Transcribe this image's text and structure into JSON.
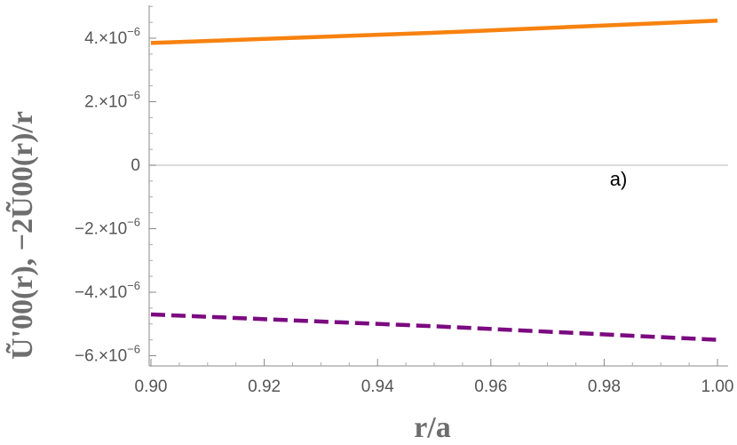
{
  "chart_data": {
    "type": "line",
    "title": "",
    "xlabel": "r/a",
    "ylabel": "Ũ'00(r), −2Ũ00(r)/r",
    "xlim": [
      0.9,
      1.0
    ],
    "ylim": [
      -6.2e-06,
      5e-06
    ],
    "x_ticks": [
      {
        "value": 0.9,
        "label": "0.90"
      },
      {
        "value": 0.92,
        "label": "0.92"
      },
      {
        "value": 0.94,
        "label": "0.94"
      },
      {
        "value": 0.96,
        "label": "0.96"
      },
      {
        "value": 0.98,
        "label": "0.98"
      },
      {
        "value": 1.0,
        "label": "1.00"
      }
    ],
    "y_ticks": [
      {
        "value": 4e-06,
        "mantissa": "4.×10",
        "exponent": "−6"
      },
      {
        "value": 2e-06,
        "mantissa": "2.×10",
        "exponent": "−6"
      },
      {
        "value": 0,
        "mantissa": "0",
        "exponent": ""
      },
      {
        "value": -2e-06,
        "mantissa": "−2.×10",
        "exponent": "−6"
      },
      {
        "value": -4e-06,
        "mantissa": "−4.×10",
        "exponent": "−6"
      },
      {
        "value": -6e-06,
        "mantissa": "−6.×10",
        "exponent": "−6"
      }
    ],
    "zero_line": true,
    "series": [
      {
        "x": [
          0.9,
          0.95,
          1.0
        ],
        "y": [
          3.85e-06,
          4.17e-06,
          4.55e-06
        ],
        "color": "#f7820f",
        "dash": "solid"
      },
      {
        "x": [
          0.9,
          0.95,
          1.0
        ],
        "y": [
          -4.7e-06,
          -5.07e-06,
          -5.5e-06
        ],
        "color": "#7b0a80",
        "dash": "dashed"
      }
    ],
    "annotations": [
      {
        "text": "a)",
        "x": 0.981,
        "y": -6.5e-07
      }
    ]
  }
}
